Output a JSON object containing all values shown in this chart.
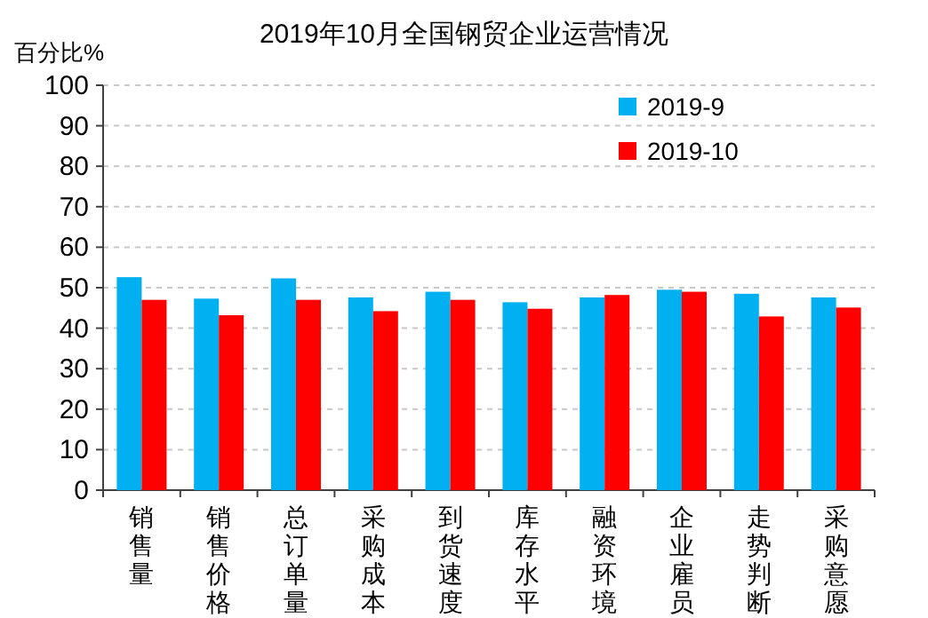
{
  "chart_data": {
    "type": "bar",
    "title": "2019年10月全国钢贸企业运营情况",
    "ylabel": "百分比%",
    "categories": [
      "销售量",
      "销售价格",
      "总订单量",
      "采购成本",
      "到货速度",
      "库存水平",
      "融资环境",
      "企业雇员",
      "走势判断",
      "采购意愿"
    ],
    "series": [
      {
        "name": "2019-9",
        "color": "#00b0f0",
        "values": [
          52.6,
          47.3,
          52.3,
          47.6,
          49.0,
          46.4,
          47.6,
          49.5,
          48.5,
          47.6
        ]
      },
      {
        "name": "2019-10",
        "color": "#ff0000",
        "values": [
          47.0,
          43.2,
          47.0,
          44.2,
          47.0,
          44.8,
          48.2,
          49.0,
          42.9,
          45.1
        ]
      }
    ],
    "ylim": [
      0,
      100
    ],
    "yticks": [
      0,
      10,
      20,
      30,
      40,
      50,
      60,
      70,
      80,
      90,
      100
    ],
    "grid": "y",
    "legend": "top right"
  }
}
